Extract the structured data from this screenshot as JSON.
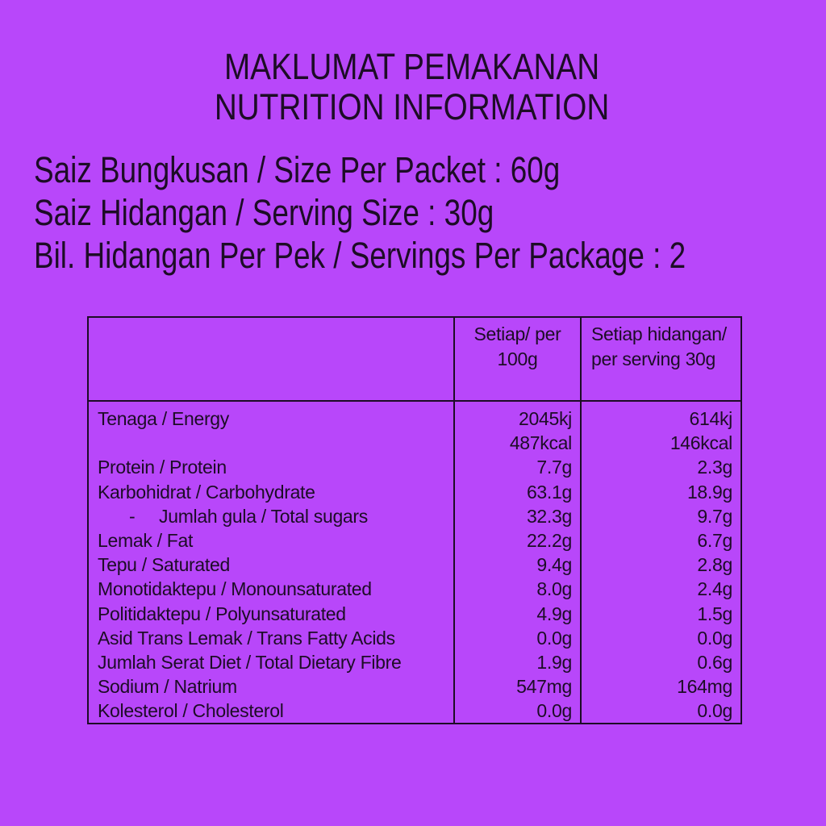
{
  "colors": {
    "background": "#b847fa",
    "text": "#1d0c26",
    "border": "#1d0c26"
  },
  "title": {
    "lines": [
      "MAKLUMAT PEMAKANAN",
      "NUTRITION INFORMATION"
    ]
  },
  "package_info": {
    "lines": [
      "Saiz Bungkusan / Size Per Packet : 60g",
      "Saiz Hidangan / Serving Size : 30g",
      "Bil. Hidangan Per Pek / Servings Per Package : 2"
    ]
  },
  "table": {
    "header": {
      "nutrient_column": "",
      "per_100g": [
        "Setiap/ per",
        "100g"
      ],
      "per_serving": [
        "Setiap hidangan/",
        "per serving 30g"
      ]
    },
    "rows": [
      {
        "label": "Tenaga / Energy",
        "per_100g": [
          "2045kj",
          "487kcal"
        ],
        "per_serving": [
          "614kj",
          "146kcal"
        ]
      },
      {
        "label": "Protein / Protein",
        "per_100g": [
          "7.7g"
        ],
        "per_serving": [
          "2.3g"
        ]
      },
      {
        "label": "Karbohidrat / Carbohydrate",
        "per_100g": [
          "63.1g"
        ],
        "per_serving": [
          "18.9g"
        ]
      },
      {
        "label": "Jumlah gula / Total sugars",
        "bullet": "-",
        "per_100g": [
          "32.3g"
        ],
        "per_serving": [
          "9.7g"
        ]
      },
      {
        "label": "Lemak / Fat",
        "per_100g": [
          "22.2g"
        ],
        "per_serving": [
          "6.7g"
        ]
      },
      {
        "label": "Tepu / Saturated",
        "per_100g": [
          "9.4g"
        ],
        "per_serving": [
          "2.8g"
        ]
      },
      {
        "label": "Monotidaktepu / Monounsaturated",
        "per_100g": [
          "8.0g"
        ],
        "per_serving": [
          "2.4g"
        ]
      },
      {
        "label": "Politidaktepu / Polyunsaturated",
        "per_100g": [
          "4.9g"
        ],
        "per_serving": [
          "1.5g"
        ]
      },
      {
        "label": "Asid Trans Lemak / Trans Fatty Acids",
        "per_100g": [
          "0.0g"
        ],
        "per_serving": [
          "0.0g"
        ]
      },
      {
        "label": "Jumlah Serat Diet / Total Dietary Fibre",
        "per_100g": [
          "1.9g"
        ],
        "per_serving": [
          "0.6g"
        ]
      },
      {
        "label": "Sodium / Natrium",
        "per_100g": [
          "547mg"
        ],
        "per_serving": [
          "164mg"
        ]
      },
      {
        "label": "Kolesterol / Cholesterol",
        "per_100g": [
          "0.0g"
        ],
        "per_serving": [
          "0.0g"
        ]
      }
    ]
  }
}
